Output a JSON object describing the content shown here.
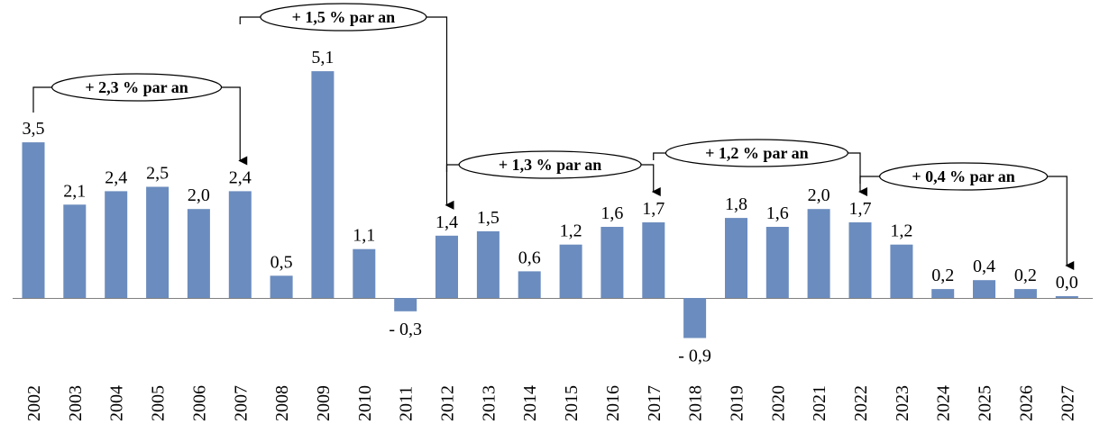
{
  "chart_data": {
    "type": "bar",
    "categories": [
      "2002",
      "2003",
      "2004",
      "2005",
      "2006",
      "2007",
      "2008",
      "2009",
      "2010",
      "2011",
      "2012",
      "2013",
      "2014",
      "2015",
      "2016",
      "2017",
      "2018",
      "2019",
      "2020",
      "2021",
      "2022",
      "2023",
      "2024",
      "2025",
      "2026",
      "2027"
    ],
    "values": [
      3.5,
      2.1,
      2.4,
      2.5,
      2.0,
      2.4,
      0.5,
      5.1,
      1.1,
      -0.3,
      1.4,
      1.5,
      0.6,
      1.2,
      1.6,
      1.7,
      -0.9,
      1.8,
      1.6,
      2.0,
      1.7,
      1.2,
      0.2,
      0.4,
      0.2,
      0.0
    ],
    "data_labels": [
      "3,5",
      "2,1",
      "2,4",
      "2,5",
      "2,0",
      "2,4",
      "0,5",
      "5,1",
      "1,1",
      "- 0,3",
      "1,4",
      "1,5",
      "0,6",
      "1,2",
      "1,6",
      "1,7",
      "- 0,9",
      "1,8",
      "1,6",
      "2,0",
      "1,7",
      "1,2",
      "0,2",
      "0,4",
      "0,2",
      "0,0"
    ],
    "title": "",
    "xlabel": "",
    "ylabel": "",
    "bar_color": "#6b8cbe",
    "annotations": [
      {
        "text": "+ 2,3 % par an",
        "from": "2002",
        "to": "2007"
      },
      {
        "text": "+ 1,5 % par an",
        "from": "2007",
        "to": "2012"
      },
      {
        "text": "+ 1,3 % par an",
        "from": "2012",
        "to": "2017"
      },
      {
        "text": "+ 1,2 % par an",
        "from": "2017",
        "to": "2022"
      },
      {
        "text": "+ 0,4 % par an",
        "from": "2022",
        "to": "2027"
      }
    ]
  }
}
